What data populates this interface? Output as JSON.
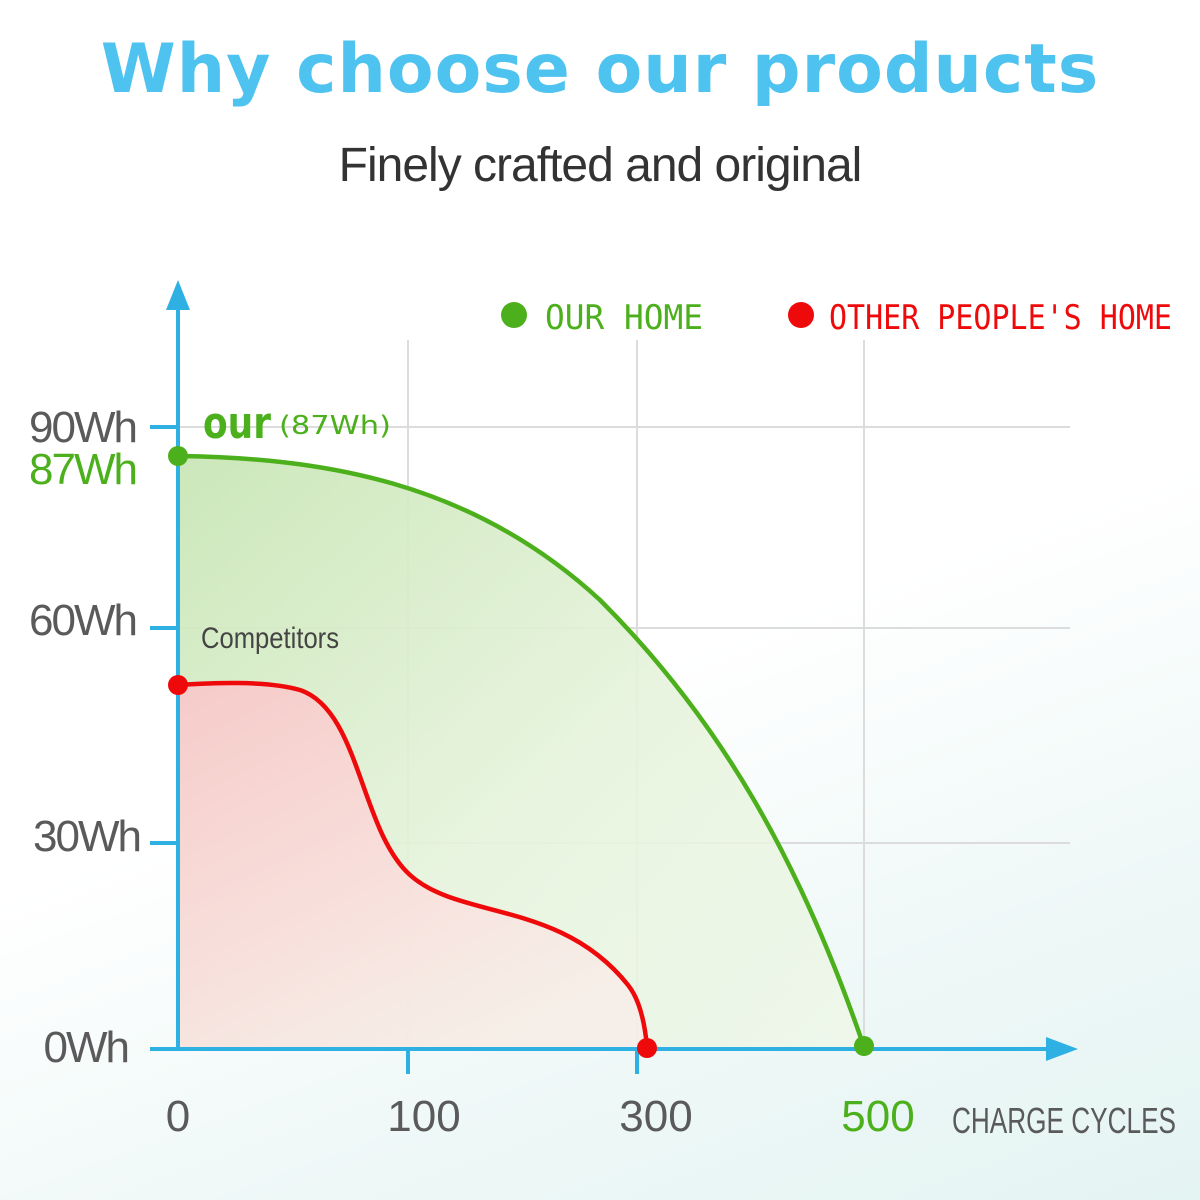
{
  "header": {
    "title": "Why choose our products",
    "subtitle": "Finely crafted and original"
  },
  "colors": {
    "axis": "#2fb0e2",
    "ours": "#4cb01c",
    "competitor": "#ee0a0a",
    "grid": "#dcdcdc",
    "title": "#4ec3ef",
    "tick_text": "#5a5a5a"
  },
  "chart_data": {
    "type": "area",
    "xlabel": "CHARGE CYCLES",
    "ylabel": "",
    "x_ticks": [
      {
        "label": "0",
        "value": 0,
        "highlight": false
      },
      {
        "label": "100",
        "value": 100,
        "highlight": false
      },
      {
        "label": "300",
        "value": 300,
        "highlight": false
      },
      {
        "label": "500",
        "value": 500,
        "highlight": true
      }
    ],
    "y_ticks": [
      {
        "label": "0Wh",
        "value": 0
      },
      {
        "label": "30Wh",
        "value": 30
      },
      {
        "label": "60Wh",
        "value": 60
      },
      {
        "label": "90Wh",
        "value": 90
      }
    ],
    "y_highlight": {
      "label": "87Wh",
      "value": 87
    },
    "ylim": [
      0,
      90
    ],
    "grid": true,
    "legend_position": "top-right",
    "legend": [
      {
        "label": "OUR HOME",
        "series": "ours"
      },
      {
        "label": "OTHER PEOPLE'S HOME",
        "series": "competitor"
      }
    ],
    "annotations": {
      "ours_label": "our",
      "ours_value_label": "(87Wh)",
      "competitor_label": "Competitors"
    },
    "series": [
      {
        "key": "ours",
        "start_value": 87,
        "end_cycles": 500
      },
      {
        "key": "competitor",
        "start_value": 52,
        "end_cycles": 305
      }
    ]
  }
}
